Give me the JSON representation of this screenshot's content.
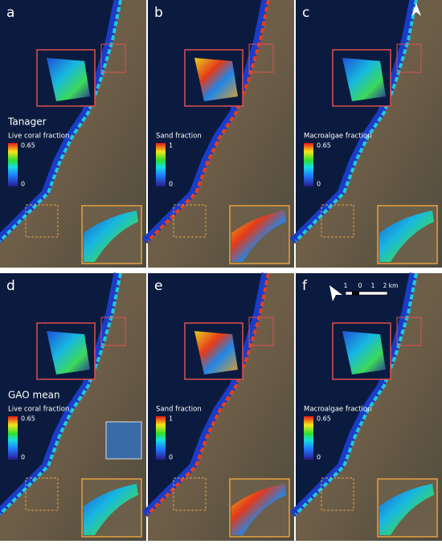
{
  "panels": [
    {
      "letter": "a",
      "title": "Tanager",
      "colorbar_label": "Live coral fraction",
      "colorbar_max": 0.65,
      "colorbar_min": 0
    },
    {
      "letter": "b",
      "colorbar_label": "Sand fraction",
      "colorbar_max": 1,
      "colorbar_min": 0
    },
    {
      "letter": "c",
      "colorbar_label": "Macroalgae fraction",
      "colorbar_max": 0.65,
      "colorbar_min": 0
    },
    {
      "letter": "d",
      "title": "GAO mean",
      "colorbar_label": "Live coral fraction",
      "colorbar_max": 0.65,
      "colorbar_min": 0
    },
    {
      "letter": "e",
      "colorbar_label": "Sand fraction",
      "colorbar_max": 1,
      "colorbar_min": 0
    },
    {
      "letter": "f",
      "colorbar_label": "Macroalgae fraction",
      "colorbar_max": 0.65,
      "colorbar_min": 0
    }
  ],
  "scale_bar": {
    "labels": [
      1,
      0,
      1,
      "2 km"
    ]
  }
}
